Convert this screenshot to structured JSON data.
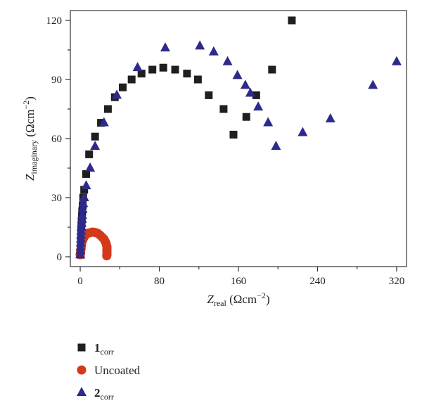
{
  "chart_data": {
    "type": "scatter",
    "xlabel": {
      "main": "Z",
      "sub": "real",
      "unit": "(Ωcm",
      "sup": "−2",
      "close": ")"
    },
    "ylabel": {
      "main": "Z",
      "sub": "imaginary",
      "unit": "(Ωcm",
      "sup": "−2",
      "close": ")"
    },
    "xlim": [
      -10,
      330
    ],
    "ylim": [
      -5,
      125
    ],
    "xticks": [
      0,
      80,
      160,
      240,
      320
    ],
    "yticks": [
      0,
      30,
      60,
      90,
      120
    ],
    "grid": false,
    "legend_position": "bottom-left",
    "colors": {
      "corr1": "#1f1f1f",
      "uncoated": "#d43a1a",
      "corr2": "#2e2a8c"
    },
    "series": [
      {
        "id": "corr1",
        "name": "1",
        "name_sub": "corr",
        "marker": "square",
        "points": [
          [
            0.5,
            1
          ],
          [
            0.5,
            3
          ],
          [
            0.5,
            5
          ],
          [
            0.7,
            7
          ],
          [
            0.8,
            9
          ],
          [
            1,
            11
          ],
          [
            1,
            13
          ],
          [
            1.2,
            15
          ],
          [
            1.4,
            17
          ],
          [
            1.6,
            19
          ],
          [
            1.8,
            21
          ],
          [
            2,
            23
          ],
          [
            2.5,
            26
          ],
          [
            3,
            30
          ],
          [
            4,
            34
          ],
          [
            6,
            42
          ],
          [
            9,
            52
          ],
          [
            15,
            61
          ],
          [
            21,
            68
          ],
          [
            28,
            75
          ],
          [
            35,
            81
          ],
          [
            43,
            86
          ],
          [
            52,
            90
          ],
          [
            62,
            93
          ],
          [
            73,
            95
          ],
          [
            84,
            96
          ],
          [
            96,
            95
          ],
          [
            108,
            93
          ],
          [
            119,
            90
          ],
          [
            130,
            82
          ],
          [
            145,
            75
          ],
          [
            155,
            62
          ],
          [
            168,
            71
          ],
          [
            178,
            82
          ],
          [
            194,
            95
          ],
          [
            214,
            120
          ]
        ]
      },
      {
        "id": "uncoated",
        "name": "Uncoated",
        "marker": "circle",
        "points": [
          [
            0,
            1
          ],
          [
            0.3,
            2
          ],
          [
            0.5,
            3
          ],
          [
            0.8,
            4
          ],
          [
            1,
            5
          ],
          [
            1.2,
            6
          ],
          [
            1.5,
            7
          ],
          [
            2,
            8
          ],
          [
            3,
            9
          ],
          [
            4,
            10
          ],
          [
            5,
            11
          ],
          [
            6,
            11.5
          ],
          [
            8,
            12
          ],
          [
            10,
            12.2
          ],
          [
            12,
            12.5
          ],
          [
            14,
            12.4
          ],
          [
            16,
            12.2
          ],
          [
            18,
            11.8
          ],
          [
            20,
            11
          ],
          [
            22,
            10
          ],
          [
            24,
            9
          ],
          [
            25,
            8
          ],
          [
            26,
            7
          ],
          [
            26.5,
            6
          ],
          [
            27,
            5
          ],
          [
            27,
            4
          ],
          [
            27,
            3
          ],
          [
            27,
            2
          ],
          [
            27,
            1
          ],
          [
            26.8,
            0.5
          ]
        ]
      },
      {
        "id": "corr2",
        "name": "2",
        "name_sub": "corr",
        "marker": "triangle",
        "points": [
          [
            0,
            1
          ],
          [
            0.2,
            3
          ],
          [
            0.3,
            5
          ],
          [
            0.5,
            7
          ],
          [
            0.7,
            9
          ],
          [
            0.8,
            11
          ],
          [
            1,
            13
          ],
          [
            1.2,
            15
          ],
          [
            1.5,
            17
          ],
          [
            1.8,
            19
          ],
          [
            2,
            21
          ],
          [
            2.5,
            24
          ],
          [
            3,
            27
          ],
          [
            4,
            30
          ],
          [
            6,
            36
          ],
          [
            10,
            45
          ],
          [
            15,
            56
          ],
          [
            24,
            68
          ],
          [
            37,
            82
          ],
          [
            58,
            96
          ],
          [
            86,
            106
          ],
          [
            121,
            107
          ],
          [
            135,
            104
          ],
          [
            149,
            99
          ],
          [
            159,
            92
          ],
          [
            167,
            87
          ],
          [
            172,
            83
          ],
          [
            180,
            76
          ],
          [
            190,
            68
          ],
          [
            198,
            56
          ],
          [
            225,
            63
          ],
          [
            253,
            70
          ],
          [
            296,
            87
          ],
          [
            320,
            99
          ]
        ]
      }
    ]
  }
}
